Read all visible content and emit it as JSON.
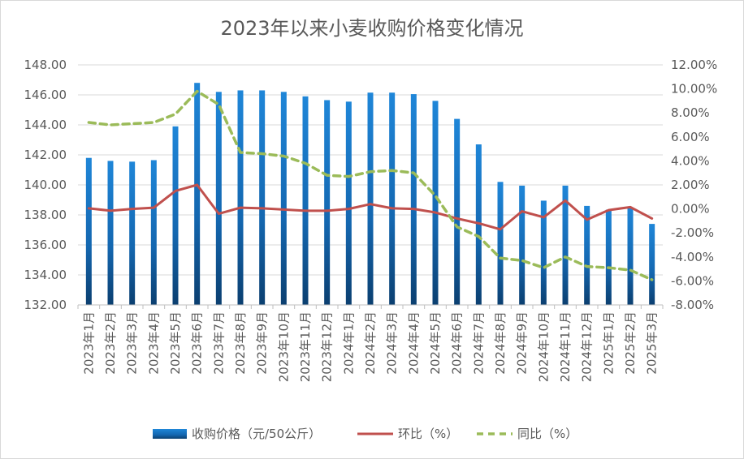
{
  "chart_data": {
    "type": "bar",
    "title": "2023年以来小麦收购价格变化情况",
    "categories": [
      "2023年1月",
      "2023年2月",
      "2023年3月",
      "2023年4月",
      "2023年5月",
      "2023年6月",
      "2023年7月",
      "2023年8月",
      "2023年9月",
      "2023年10月",
      "2023年11月",
      "2023年12月",
      "2024年1月",
      "2024年2月",
      "2024年3月",
      "2024年4月",
      "2024年5月",
      "2024年6月",
      "2024年7月",
      "2024年8月",
      "2024年9月",
      "2024年10月",
      "2024年11月",
      "2024年12月",
      "2025年1月",
      "2025年2月",
      "2025年3月"
    ],
    "y_left": {
      "min": 132,
      "max": 148,
      "step": 2,
      "tick_labels": [
        "132.00",
        "134.00",
        "136.00",
        "138.00",
        "140.00",
        "142.00",
        "144.00",
        "146.00",
        "148.00"
      ]
    },
    "y_right": {
      "min": -8,
      "max": 12,
      "step": 2,
      "tick_labels": [
        "-8.00%",
        "-6.00%",
        "-4.00%",
        "-2.00%",
        "0.00%",
        "2.00%",
        "4.00%",
        "6.00%",
        "8.00%",
        "10.00%",
        "12.00%"
      ]
    },
    "series": [
      {
        "name": "收购价格（元/50公斤）",
        "type": "bar",
        "axis": "left",
        "color": "#1f77c9",
        "values": [
          141.8,
          141.6,
          141.55,
          141.65,
          143.9,
          146.8,
          146.2,
          146.3,
          146.3,
          146.2,
          145.9,
          145.65,
          145.55,
          146.15,
          146.15,
          146.05,
          145.6,
          144.4,
          142.7,
          140.2,
          139.95,
          138.95,
          139.95,
          138.6,
          138.35,
          138.5,
          137.4
        ]
      },
      {
        "name": "环比（%）",
        "type": "line",
        "axis": "right",
        "color": "#c0504d",
        "values": [
          0.05,
          -0.15,
          0.0,
          0.1,
          1.5,
          2.0,
          -0.4,
          0.1,
          0.05,
          -0.05,
          -0.15,
          -0.15,
          0.0,
          0.4,
          0.05,
          0.0,
          -0.3,
          -0.8,
          -1.2,
          -1.7,
          -0.2,
          -0.7,
          0.7,
          -0.9,
          -0.1,
          0.15,
          -0.8
        ]
      },
      {
        "name": "同比（%）",
        "type": "line",
        "axis": "right",
        "color": "#9bbb59",
        "dashed": true,
        "values": [
          7.2,
          7.0,
          7.1,
          7.2,
          7.9,
          9.8,
          8.7,
          4.7,
          4.6,
          4.4,
          3.8,
          2.8,
          2.7,
          3.1,
          3.2,
          3.0,
          1.1,
          -1.5,
          -2.3,
          -4.1,
          -4.3,
          -4.9,
          -4.0,
          -4.8,
          -4.9,
          -5.1,
          -5.9
        ]
      }
    ],
    "legend": {
      "position": "bottom"
    },
    "grid": true
  }
}
